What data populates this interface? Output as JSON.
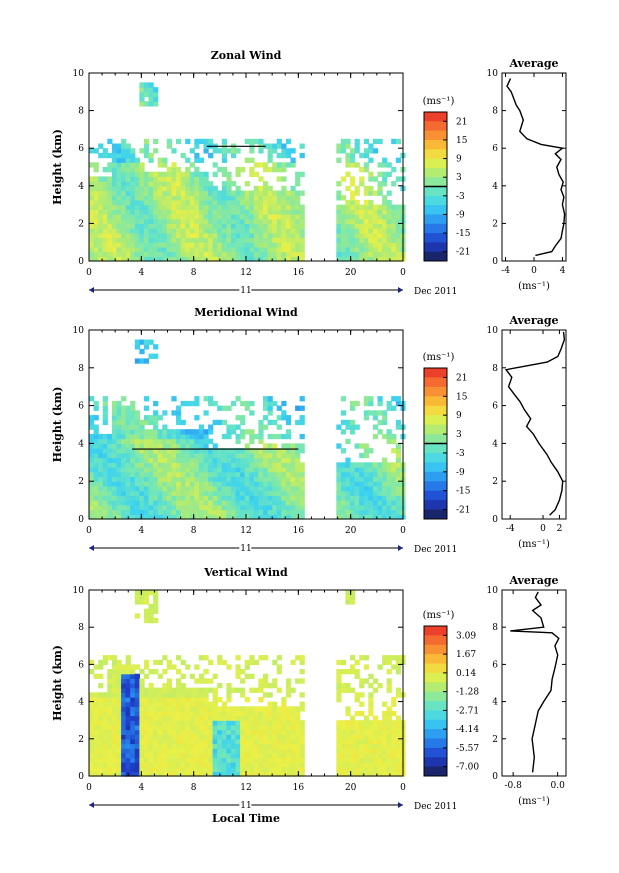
{
  "chart_data": [
    {
      "type": "heatmap",
      "title": "Zonal Wind",
      "ylabel": "Height (km)",
      "xlabel": "",
      "xlim": [
        0,
        24
      ],
      "ylim": [
        0,
        10
      ],
      "x_ticks": [
        "0",
        "4",
        "8",
        "12",
        "16",
        "20",
        "0"
      ],
      "y_ticks": [
        "0",
        "2",
        "4",
        "6",
        "8",
        "10"
      ],
      "date_day": "11",
      "date_label": "Dec 2011",
      "colorbar": {
        "unit": "(ms⁻¹)",
        "ticks": [
          "21",
          "15",
          "9",
          "3",
          "-3",
          "-9",
          "-15",
          "-21"
        ],
        "vmin": -24,
        "vmax": 24,
        "zero_line": true
      },
      "profile": {
        "title": "Average",
        "xlabel": "(ms⁻¹)",
        "x_ticks": [
          "-4",
          "0",
          "4"
        ],
        "xlim": [
          -4.5,
          4.5
        ],
        "points": [
          [
            0.2,
            0.3
          ],
          [
            2.5,
            0.5
          ],
          [
            3.0,
            0.8
          ],
          [
            3.8,
            1.2
          ],
          [
            4.0,
            1.6
          ],
          [
            4.2,
            2.0
          ],
          [
            4.3,
            2.5
          ],
          [
            4.0,
            3.0
          ],
          [
            4.2,
            3.4
          ],
          [
            3.8,
            3.8
          ],
          [
            4.1,
            4.2
          ],
          [
            3.5,
            4.6
          ],
          [
            3.2,
            5.0
          ],
          [
            3.8,
            5.4
          ],
          [
            3.0,
            5.7
          ],
          [
            4.0,
            6.0
          ],
          [
            1.0,
            6.2
          ],
          [
            -1.0,
            6.5
          ],
          [
            -2.0,
            6.9
          ],
          [
            -1.5,
            7.5
          ],
          [
            -2.0,
            8.0
          ],
          [
            -2.5,
            8.3
          ],
          [
            -3.2,
            9.0
          ],
          [
            -3.8,
            9.3
          ],
          [
            -3.3,
            9.7
          ]
        ]
      }
    },
    {
      "type": "heatmap",
      "title": "Meridional Wind",
      "ylabel": "Height (km)",
      "xlabel": "",
      "xlim": [
        0,
        24
      ],
      "ylim": [
        0,
        10
      ],
      "x_ticks": [
        "0",
        "4",
        "8",
        "12",
        "16",
        "20",
        "0"
      ],
      "y_ticks": [
        "0",
        "2",
        "4",
        "6",
        "8",
        "10"
      ],
      "date_day": "11",
      "date_label": "Dec 2011",
      "colorbar": {
        "unit": "(ms⁻¹)",
        "ticks": [
          "21",
          "15",
          "9",
          "3",
          "-3",
          "-9",
          "-15",
          "-21"
        ],
        "vmin": -24,
        "vmax": 24,
        "zero_line": true
      },
      "profile": {
        "title": "Average",
        "xlabel": "(ms⁻¹)",
        "x_ticks": [
          "-4",
          "0",
          "2"
        ],
        "xlim": [
          -5.0,
          2.8
        ],
        "points": [
          [
            0.8,
            0.2
          ],
          [
            1.5,
            0.5
          ],
          [
            2.0,
            1.0
          ],
          [
            2.3,
            1.5
          ],
          [
            2.4,
            2.0
          ],
          [
            1.8,
            2.5
          ],
          [
            1.0,
            3.0
          ],
          [
            0.5,
            3.4
          ],
          [
            -0.5,
            4.0
          ],
          [
            -1.2,
            4.5
          ],
          [
            -2.0,
            4.9
          ],
          [
            -1.5,
            5.3
          ],
          [
            -2.3,
            5.8
          ],
          [
            -2.8,
            6.2
          ],
          [
            -3.5,
            6.6
          ],
          [
            -4.2,
            7.0
          ],
          [
            -3.8,
            7.5
          ],
          [
            -4.5,
            7.9
          ],
          [
            0.5,
            8.3
          ],
          [
            1.8,
            8.6
          ],
          [
            2.2,
            9.0
          ],
          [
            2.6,
            9.5
          ],
          [
            2.5,
            9.9
          ]
        ]
      }
    },
    {
      "type": "heatmap",
      "title": "Vertical Wind",
      "ylabel": "Height (km)",
      "xlabel": "Local Time",
      "xlim": [
        0,
        24
      ],
      "ylim": [
        0,
        10
      ],
      "x_ticks": [
        "0",
        "4",
        "8",
        "12",
        "16",
        "20",
        "0"
      ],
      "y_ticks": [
        "0",
        "2",
        "4",
        "6",
        "8",
        "10"
      ],
      "date_day": "11",
      "date_label": "Dec 2011",
      "colorbar": {
        "unit": "(ms⁻¹)",
        "ticks": [
          "3.09",
          "1.67",
          "0.14",
          "-1.28",
          "-2.71",
          "-4.14",
          "-5.57",
          "-7.00"
        ],
        "vmin": -7.7,
        "vmax": 3.8,
        "zero_line": false
      },
      "profile": {
        "title": "Average",
        "xlabel": "(ms⁻¹)",
        "x_ticks": [
          "-0.8",
          "0.0"
        ],
        "xlim": [
          -1.0,
          0.15
        ],
        "points": [
          [
            -0.45,
            0.2
          ],
          [
            -0.42,
            1.0
          ],
          [
            -0.46,
            2.0
          ],
          [
            -0.4,
            2.8
          ],
          [
            -0.35,
            3.5
          ],
          [
            -0.25,
            4.0
          ],
          [
            -0.12,
            4.6
          ],
          [
            -0.1,
            5.2
          ],
          [
            -0.05,
            5.8
          ],
          [
            0.0,
            6.5
          ],
          [
            -0.05,
            7.0
          ],
          [
            0.02,
            7.4
          ],
          [
            -0.1,
            7.7
          ],
          [
            -0.85,
            7.8
          ],
          [
            -0.25,
            8.0
          ],
          [
            -0.3,
            8.5
          ],
          [
            -0.45,
            8.9
          ],
          [
            -0.3,
            9.2
          ],
          [
            -0.4,
            9.6
          ],
          [
            -0.35,
            9.9
          ]
        ]
      }
    }
  ]
}
